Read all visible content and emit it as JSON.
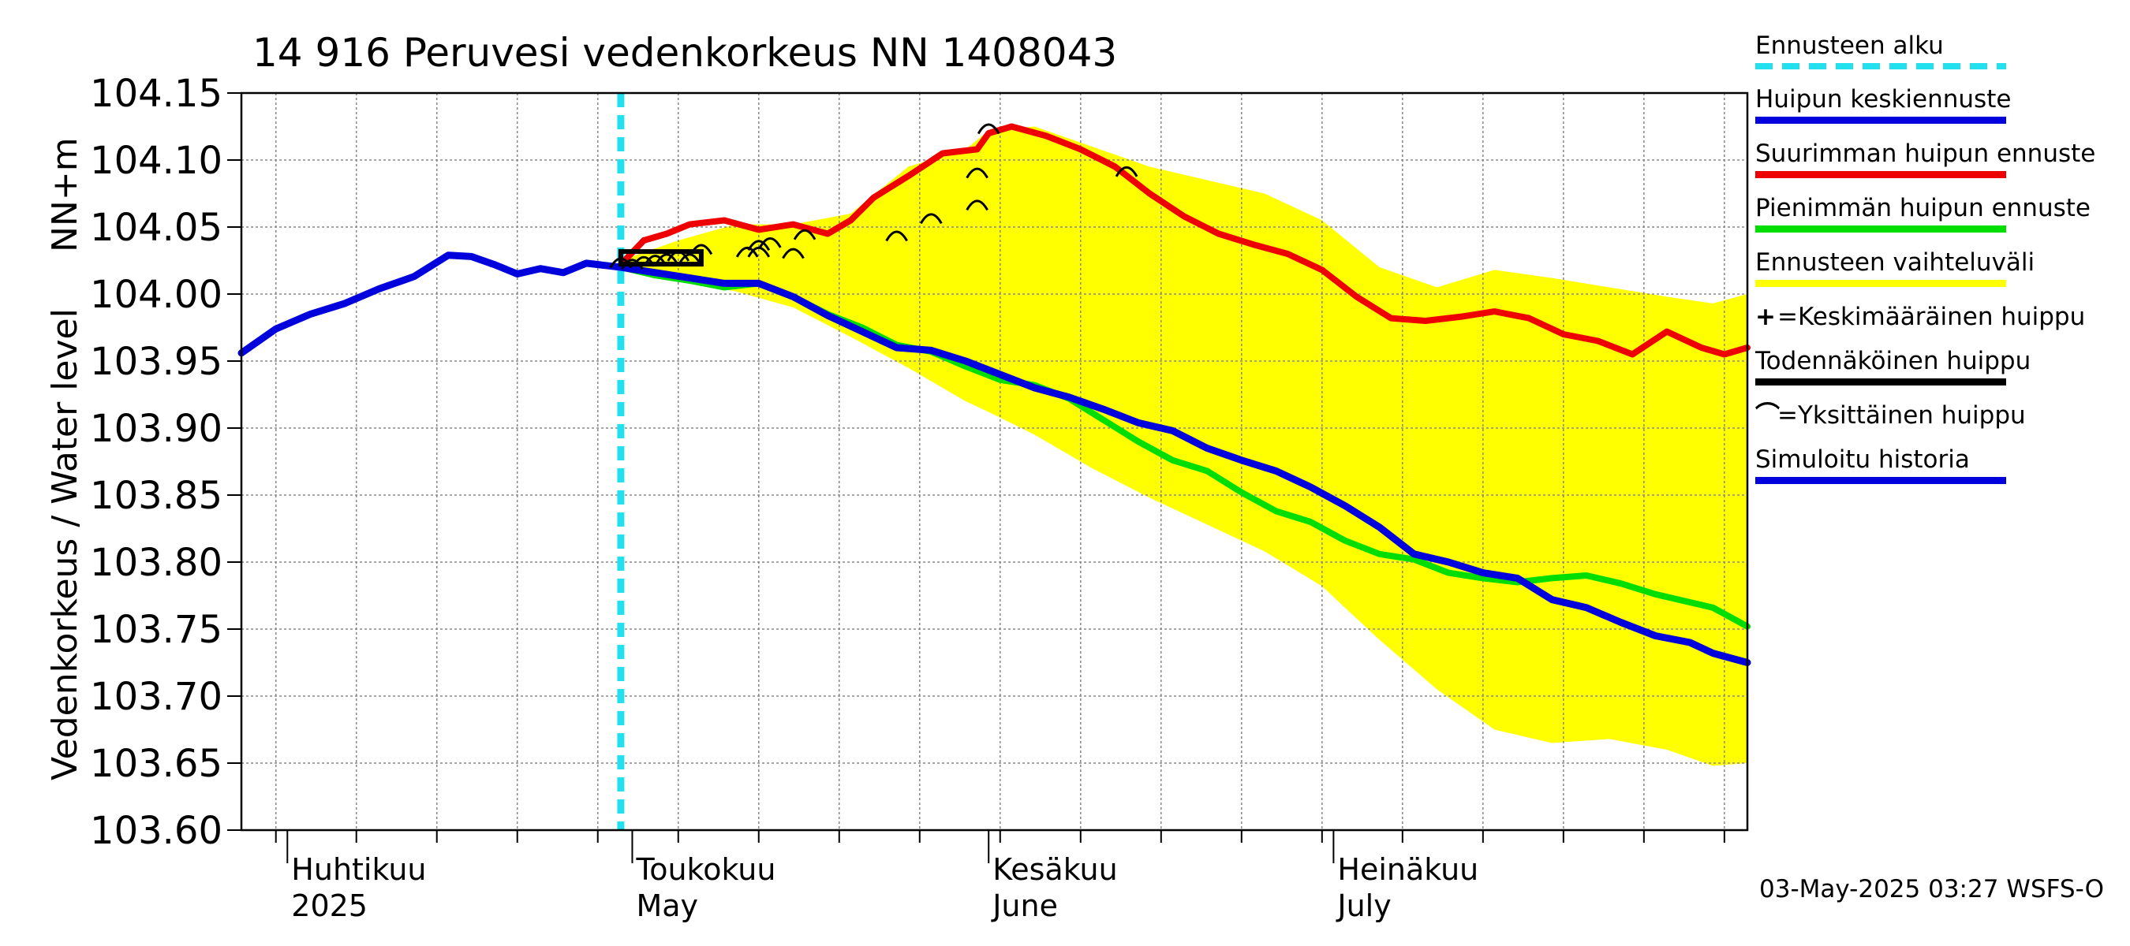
{
  "chart_data": {
    "type": "line",
    "title": "14 916 Peruvesi vedenkorkeus NN 1408043",
    "ylabel_main": "Vedenkorkeus / Water level",
    "ylabel_unit": "NN+m",
    "ylim": [
      103.6,
      104.15
    ],
    "yticks": [
      "104.15",
      "104.10",
      "104.05",
      "104.00",
      "103.95",
      "103.90",
      "103.85",
      "103.80",
      "103.75",
      "103.70",
      "103.65",
      "103.60"
    ],
    "x_start": "2025-03-28",
    "x_end": "2025-08-06",
    "month_labels": [
      {
        "date": "2025-04-01",
        "fi": "Huhtikuu",
        "en": "2025"
      },
      {
        "date": "2025-05-01",
        "fi": "Toukokuu",
        "en": "May"
      },
      {
        "date": "2025-06-01",
        "fi": "Kesäkuu",
        "en": "June"
      },
      {
        "date": "2025-07-01",
        "fi": "Heinäkuu",
        "en": "July"
      }
    ],
    "forecast_start": "2025-04-30",
    "simulated_history": {
      "name": "Simuloitu historia",
      "color": "#0000dd",
      "x": [
        "2025-03-28",
        "2025-03-31",
        "2025-04-03",
        "2025-04-06",
        "2025-04-09",
        "2025-04-12",
        "2025-04-15",
        "2025-04-17",
        "2025-04-19",
        "2025-04-21",
        "2025-04-23",
        "2025-04-25",
        "2025-04-27",
        "2025-04-29",
        "2025-04-30"
      ],
      "y": [
        103.956,
        103.974,
        103.985,
        103.993,
        104.004,
        104.013,
        104.029,
        104.028,
        104.022,
        104.015,
        104.019,
        104.016,
        104.023,
        104.021,
        104.02
      ]
    },
    "series": [
      {
        "name": "Huipun keskiennuste",
        "color": "#0000dd",
        "x": [
          "2025-04-30",
          "2025-05-03",
          "2025-05-06",
          "2025-05-09",
          "2025-05-12",
          "2025-05-15",
          "2025-05-18",
          "2025-05-21",
          "2025-05-24",
          "2025-05-27",
          "2025-05-30",
          "2025-06-02",
          "2025-06-05",
          "2025-06-08",
          "2025-06-11",
          "2025-06-14",
          "2025-06-17",
          "2025-06-20",
          "2025-06-23",
          "2025-06-26",
          "2025-06-29",
          "2025-07-02",
          "2025-07-05",
          "2025-07-08",
          "2025-07-11",
          "2025-07-14",
          "2025-07-17",
          "2025-07-20",
          "2025-07-23",
          "2025-07-26",
          "2025-07-29",
          "2025-08-01",
          "2025-08-03",
          "2025-08-06"
        ],
        "y": [
          104.02,
          104.016,
          104.012,
          104.008,
          104.008,
          103.998,
          103.984,
          103.972,
          103.96,
          103.958,
          103.95,
          103.94,
          103.93,
          103.923,
          103.914,
          103.904,
          103.898,
          103.885,
          103.876,
          103.868,
          103.856,
          103.842,
          103.826,
          103.806,
          103.8,
          103.792,
          103.788,
          103.772,
          103.766,
          103.755,
          103.745,
          103.74,
          103.732,
          103.725
        ]
      },
      {
        "name": "Suurimman huipun ennuste",
        "color": "#ee0000",
        "x": [
          "2025-04-30",
          "2025-05-02",
          "2025-05-04",
          "2025-05-06",
          "2025-05-09",
          "2025-05-12",
          "2025-05-15",
          "2025-05-18",
          "2025-05-20",
          "2025-05-22",
          "2025-05-25",
          "2025-05-28",
          "2025-05-31",
          "2025-06-01",
          "2025-06-03",
          "2025-06-06",
          "2025-06-09",
          "2025-06-12",
          "2025-06-15",
          "2025-06-18",
          "2025-06-21",
          "2025-06-24",
          "2025-06-27",
          "2025-06-30",
          "2025-07-03",
          "2025-07-06",
          "2025-07-09",
          "2025-07-12",
          "2025-07-15",
          "2025-07-18",
          "2025-07-21",
          "2025-07-24",
          "2025-07-27",
          "2025-07-30",
          "2025-08-02",
          "2025-08-04",
          "2025-08-06"
        ],
        "y": [
          104.022,
          104.04,
          104.045,
          104.052,
          104.055,
          104.048,
          104.052,
          104.045,
          104.055,
          104.072,
          104.088,
          104.105,
          104.108,
          104.12,
          104.125,
          104.118,
          104.108,
          104.095,
          104.075,
          104.058,
          104.045,
          104.037,
          104.03,
          104.018,
          103.998,
          103.982,
          103.98,
          103.983,
          103.987,
          103.982,
          103.97,
          103.965,
          103.955,
          103.972,
          103.96,
          103.955,
          103.96
        ]
      },
      {
        "name": "Pienimmän huipun ennuste",
        "color": "#00dd00",
        "x": [
          "2025-04-30",
          "2025-05-03",
          "2025-05-06",
          "2025-05-09",
          "2025-05-12",
          "2025-05-15",
          "2025-05-18",
          "2025-05-21",
          "2025-05-24",
          "2025-05-27",
          "2025-05-30",
          "2025-06-02",
          "2025-06-05",
          "2025-06-08",
          "2025-06-11",
          "2025-06-14",
          "2025-06-17",
          "2025-06-20",
          "2025-06-23",
          "2025-06-26",
          "2025-06-29",
          "2025-07-02",
          "2025-07-05",
          "2025-07-08",
          "2025-07-11",
          "2025-07-14",
          "2025-07-17",
          "2025-07-20",
          "2025-07-23",
          "2025-07-26",
          "2025-07-29",
          "2025-08-01",
          "2025-08-03",
          "2025-08-06"
        ],
        "y": [
          104.02,
          104.014,
          104.01,
          104.005,
          104.008,
          103.998,
          103.985,
          103.975,
          103.962,
          103.957,
          103.946,
          103.936,
          103.932,
          103.922,
          103.906,
          103.89,
          103.876,
          103.868,
          103.852,
          103.838,
          103.83,
          103.816,
          103.806,
          103.802,
          103.792,
          103.788,
          103.785,
          103.788,
          103.79,
          103.784,
          103.776,
          103.77,
          103.766,
          103.752
        ]
      }
    ],
    "range_band": {
      "name": "Ennusteen vaihteluväli",
      "color": "#ffff00",
      "x": [
        "2025-04-30",
        "2025-05-05",
        "2025-05-10",
        "2025-05-15",
        "2025-05-20",
        "2025-05-25",
        "2025-05-30",
        "2025-06-01",
        "2025-06-05",
        "2025-06-10",
        "2025-06-15",
        "2025-06-20",
        "2025-06-25",
        "2025-06-30",
        "2025-07-05",
        "2025-07-10",
        "2025-07-15",
        "2025-07-20",
        "2025-07-25",
        "2025-07-30",
        "2025-08-03",
        "2025-08-06"
      ],
      "upper": [
        104.025,
        104.04,
        104.052,
        104.052,
        104.06,
        104.095,
        104.108,
        104.122,
        104.125,
        104.11,
        104.095,
        104.085,
        104.075,
        104.055,
        104.02,
        104.005,
        104.018,
        104.012,
        104.005,
        103.998,
        103.993,
        104.0
      ],
      "lower": [
        104.018,
        104.01,
        104.002,
        103.99,
        103.968,
        103.945,
        103.92,
        103.912,
        103.895,
        103.87,
        103.848,
        103.828,
        103.808,
        103.782,
        103.742,
        103.705,
        103.675,
        103.665,
        103.668,
        103.66,
        103.648,
        103.65
      ]
    },
    "probable_peak": {
      "name": "Todennäköinen huippu",
      "x_start": "2025-04-30",
      "x_end": "2025-05-07",
      "y": 104.027
    },
    "individual_peaks": {
      "name": "Yksittäinen huippu",
      "points": [
        {
          "x": "2025-04-30",
          "y": 104.025
        },
        {
          "x": "2025-05-01",
          "y": 104.024
        },
        {
          "x": "2025-05-02",
          "y": 104.026
        },
        {
          "x": "2025-05-03",
          "y": 104.027
        },
        {
          "x": "2025-05-04",
          "y": 104.028
        },
        {
          "x": "2025-05-05",
          "y": 104.03
        },
        {
          "x": "2025-05-06",
          "y": 104.028
        },
        {
          "x": "2025-05-07",
          "y": 104.035
        },
        {
          "x": "2025-05-11",
          "y": 104.033
        },
        {
          "x": "2025-05-12",
          "y": 104.038
        },
        {
          "x": "2025-05-12",
          "y": 104.033
        },
        {
          "x": "2025-05-13",
          "y": 104.04
        },
        {
          "x": "2025-05-15",
          "y": 104.032
        },
        {
          "x": "2025-05-16",
          "y": 104.046
        },
        {
          "x": "2025-05-24",
          "y": 104.045
        },
        {
          "x": "2025-05-27",
          "y": 104.058
        },
        {
          "x": "2025-05-31",
          "y": 104.068
        },
        {
          "x": "2025-05-31",
          "y": 104.092
        },
        {
          "x": "2025-06-01",
          "y": 104.125
        },
        {
          "x": "2025-06-13",
          "y": 104.093
        }
      ]
    },
    "legend_entries": [
      {
        "label": "Ennusteen alku",
        "color": "#22e0ee",
        "style": "dashed"
      },
      {
        "label": "Huipun keskiennuste",
        "color": "#0000dd",
        "style": "solid"
      },
      {
        "label": "Suurimman huipun ennuste",
        "color": "#ee0000",
        "style": "solid"
      },
      {
        "label": "Pienimmän huipun ennuste",
        "color": "#00dd00",
        "style": "solid"
      },
      {
        "label": "Ennusteen vaihteluväli",
        "color": "#ffff00",
        "style": "solid"
      },
      {
        "label": "=Keskimääräinen huippu",
        "symbol": "+",
        "style": "symbol"
      },
      {
        "label": "Todennäköinen huippu",
        "color": "#000000",
        "style": "solid"
      },
      {
        "label": "=Yksittäinen huippu",
        "symbol": "⌒",
        "style": "symbol"
      },
      {
        "label": "Simuloitu historia",
        "color": "#0000dd",
        "style": "solid"
      }
    ],
    "grid": true,
    "legend_position": "right"
  },
  "footer": {
    "timestamp": "03-May-2025 03:27 WSFS-O"
  }
}
